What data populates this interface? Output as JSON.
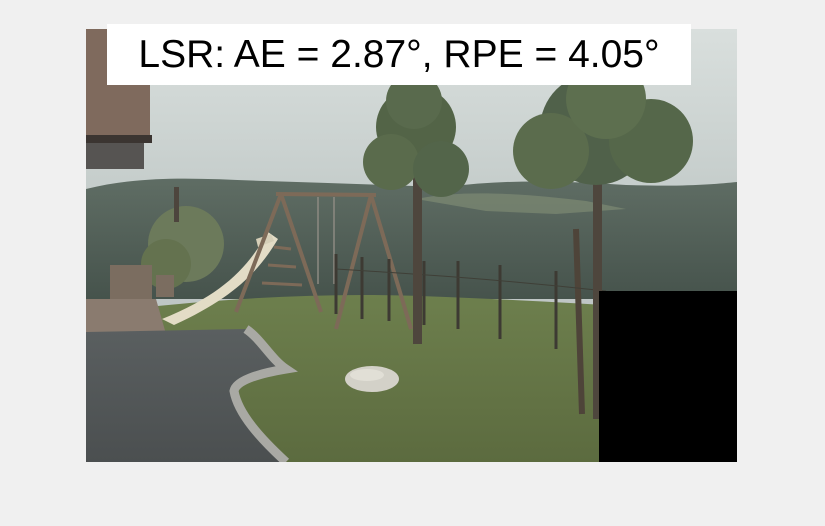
{
  "figure": {
    "title": "LSR: AE = 2.87°, RPE = 4.05°",
    "colors": {
      "background": "#f0f0f0",
      "title_box": "#ffffff",
      "title_text": "#000000",
      "mask": "#000000"
    }
  }
}
